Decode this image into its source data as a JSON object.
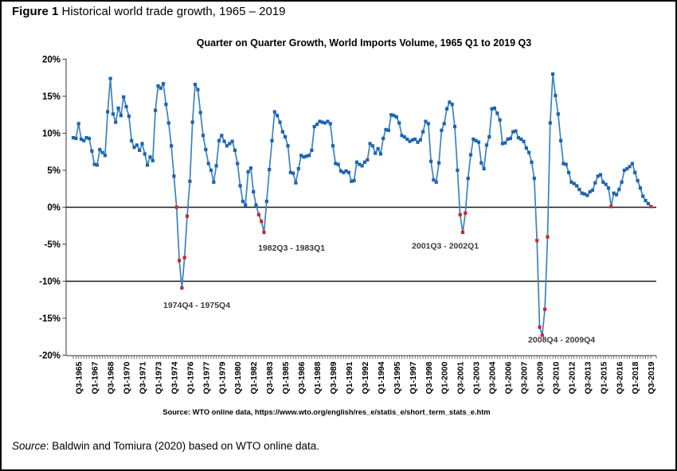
{
  "page": {
    "figure_label": "Figure 1",
    "figure_caption": " Historical world trade growth, 1965 – 2019",
    "footer_source_label": "Source",
    "footer_source_rest": ": Baldwin and Tomiura (2020) based on WTO online data."
  },
  "chart_data": {
    "type": "line",
    "title": "Quarter on Quarter Growth, World Imports Volume, 1965 Q1 to 2019 Q3",
    "xlabel": "",
    "ylabel": "",
    "x_start": "1965Q1",
    "x_end": "2019Q3",
    "ylim": [
      -20,
      20
    ],
    "grid": "off",
    "legend": "none",
    "y_tick_labels": [
      "20%",
      "15%",
      "10%",
      "5%",
      "0%",
      "-5%",
      "-10%",
      "-15%",
      "-20%"
    ],
    "y_tick_values": [
      20,
      15,
      10,
      5,
      0,
      -5,
      -10,
      -15,
      -20
    ],
    "x_tick_start_index": 2,
    "x_tick_interval": 6,
    "x_tick_labels": [
      "Q3-1965",
      "Q1-1967",
      "Q3-1968",
      "Q1-1970",
      "Q3-1971",
      "Q1-1973",
      "Q3-1974",
      "Q1-1976",
      "Q3-1977",
      "Q1-1979",
      "Q3-1980",
      "Q1-1982",
      "Q3-1983",
      "Q1-1985",
      "Q3-1986",
      "Q1-1988",
      "Q3-1989",
      "Q1-1991",
      "Q3-1992",
      "Q1-1994",
      "Q3-1995",
      "Q1-1997",
      "Q3-1998",
      "Q1-2000",
      "Q3-2001",
      "Q1-2003",
      "Q3-2004",
      "Q1-2006",
      "Q3-2007",
      "Q1-2009",
      "Q3-2010",
      "Q1-2012",
      "Q3-2013",
      "Q1-2015",
      "Q3-2016",
      "Q1-2018",
      "Q3-2019"
    ],
    "ref_lines": [
      0,
      -10
    ],
    "values": [
      9.4,
      9.3,
      11.3,
      9.2,
      9.0,
      9.4,
      9.3,
      7.6,
      5.8,
      5.7,
      7.8,
      7.4,
      7.0,
      12.9,
      17.4,
      12.6,
      11.5,
      13.4,
      12.4,
      14.9,
      13.6,
      12.3,
      9.0,
      8.1,
      8.4,
      7.7,
      8.6,
      7.2,
      5.7,
      6.8,
      6.3,
      13.1,
      16.4,
      16.1,
      16.7,
      13.9,
      11.4,
      8.3,
      4.2,
      0.0,
      -7.2,
      -10.9,
      -6.8,
      -1.2,
      3.5,
      11.5,
      16.6,
      15.9,
      12.8,
      9.7,
      7.8,
      5.9,
      5.0,
      3.4,
      5.6,
      9.0,
      9.7,
      8.9,
      8.3,
      8.6,
      8.9,
      7.7,
      5.9,
      2.9,
      0.8,
      0.3,
      4.8,
      5.3,
      2.1,
      0.3,
      -1.0,
      -1.9,
      -3.4,
      0.8,
      5.1,
      9.0,
      12.9,
      12.4,
      11.5,
      10.2,
      9.5,
      8.3,
      4.7,
      4.6,
      3.3,
      5.2,
      7.0,
      6.8,
      6.9,
      7.0,
      7.7,
      10.9,
      11.2,
      11.6,
      11.5,
      11.4,
      11.6,
      11.3,
      8.3,
      5.9,
      5.8,
      4.9,
      4.7,
      4.9,
      4.7,
      3.5,
      3.6,
      6.1,
      5.8,
      5.6,
      6.1,
      6.4,
      8.6,
      8.3,
      7.3,
      7.9,
      7.2,
      9.3,
      10.5,
      10.4,
      12.5,
      12.4,
      12.2,
      11.4,
      9.7,
      9.5,
      9.2,
      8.9,
      9.1,
      9.2,
      8.8,
      9.1,
      10.2,
      11.6,
      11.3,
      6.2,
      3.7,
      3.4,
      6.0,
      10.4,
      11.3,
      13.3,
      14.2,
      13.9,
      10.9,
      5.0,
      -1.0,
      -3.4,
      -0.8,
      3.9,
      7.1,
      9.2,
      9.0,
      8.8,
      6.0,
      5.2,
      8.4,
      9.5,
      13.3,
      13.4,
      12.7,
      11.8,
      8.6,
      8.7,
      9.2,
      9.3,
      10.2,
      10.3,
      9.4,
      9.2,
      8.9,
      8.0,
      7.4,
      6.1,
      3.9,
      -4.5,
      -16.2,
      -17.3,
      -13.8,
      -4.0,
      11.4,
      18.0,
      15.1,
      12.6,
      9.0,
      5.9,
      5.8,
      4.7,
      3.4,
      3.2,
      2.9,
      2.4,
      1.9,
      1.8,
      1.6,
      2.1,
      2.3,
      3.3,
      4.2,
      4.4,
      3.4,
      3.1,
      2.6,
      0.1,
      1.9,
      1.7,
      2.4,
      3.4,
      5.0,
      5.2,
      5.5,
      5.9,
      4.7,
      3.6,
      2.6,
      1.5,
      0.9,
      0.5,
      0.1
    ],
    "recession_indices": [
      39,
      40,
      41,
      42,
      43,
      70,
      71,
      72,
      146,
      147,
      148,
      175,
      176,
      177,
      178,
      179,
      203,
      218
    ],
    "annotations": [
      {
        "text": "1974Q4 - 1975Q4",
        "quarter_index": 46.6,
        "value": -13.2
      },
      {
        "text": "1982Q3 - 1983Q1",
        "quarter_index": 82.4,
        "value": -5.5
      },
      {
        "text": "2001Q3 - 2002Q1",
        "quarter_index": 140.4,
        "value": -5.2
      },
      {
        "text": "2008Q4 - 2009Q4",
        "quarter_index": 184.3,
        "value": -17.9
      }
    ],
    "source_note": "Source: WTO online data,  https://www.wto.org/english/res_e/statis_e/short_term_stats_e.htm",
    "colors": {
      "line": "#3B82C4",
      "marker": "#1F64AE",
      "recession_marker": "#CC2929",
      "ref_line": "#1a1a1a",
      "axis": "#595959",
      "text": "#000000",
      "annotation": "#3a3a3a"
    }
  }
}
